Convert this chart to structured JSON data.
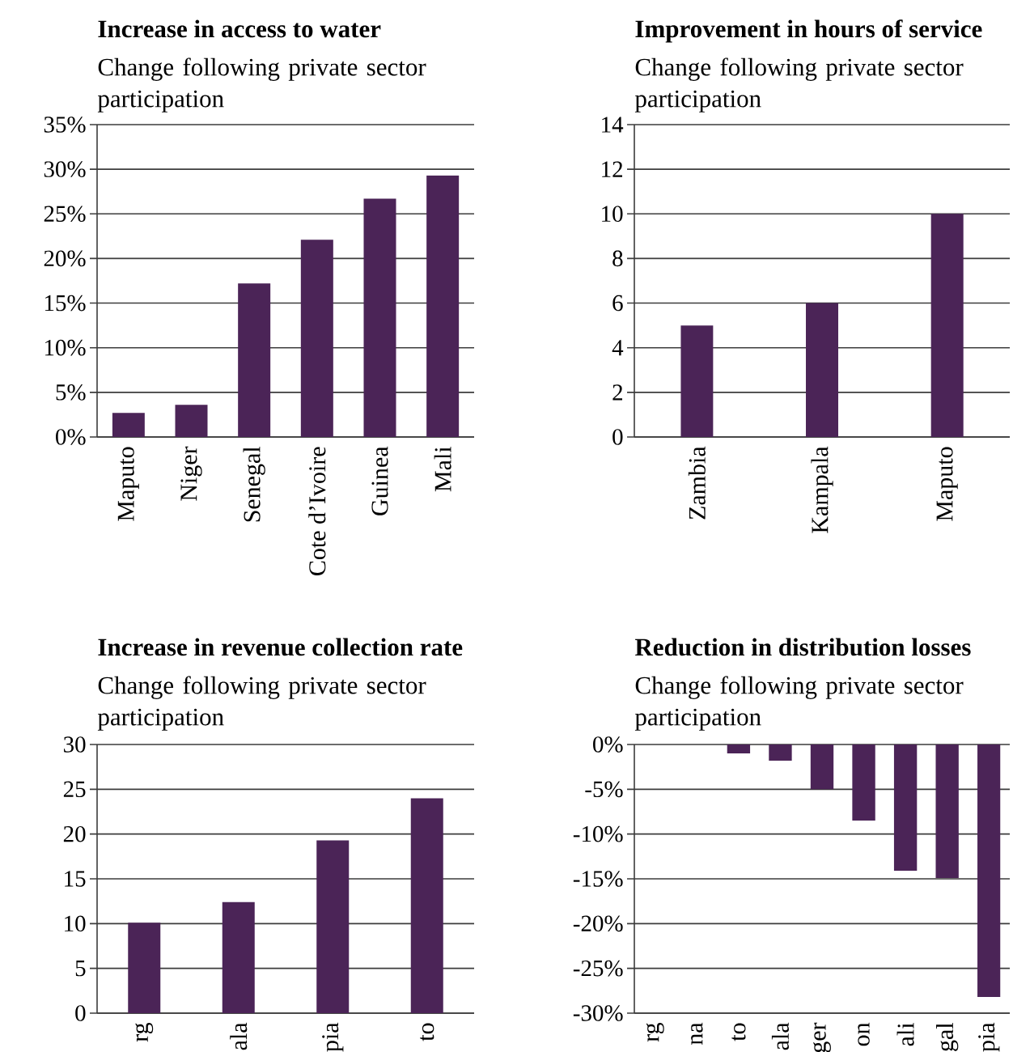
{
  "chart_data": [
    {
      "type": "bar",
      "title": "Increase in access to water",
      "subtitle": "Change following private sector participation",
      "categories": [
        "Maputo",
        "Niger",
        "Senegal",
        "Cote d’Ivoire",
        "Guinea",
        "Mali"
      ],
      "values": [
        2.7,
        3.6,
        17.2,
        22.1,
        26.7,
        29.3
      ],
      "color": "#4b2457",
      "ylim": [
        0,
        35
      ],
      "yticks": [
        {
          "value": 0,
          "label": "0%"
        },
        {
          "value": 5,
          "label": "5%"
        },
        {
          "value": 10,
          "label": "10%"
        },
        {
          "value": 15,
          "label": "15%"
        },
        {
          "value": 20,
          "label": "20%"
        },
        {
          "value": 25,
          "label": "25%"
        },
        {
          "value": 30,
          "label": "30%"
        },
        {
          "value": 35,
          "label": "35%"
        }
      ],
      "grid": "y"
    },
    {
      "type": "bar",
      "title": "Improvement in hours of service",
      "subtitle": "Change following private sector participation",
      "categories": [
        "Zambia",
        "Kampala",
        "Maputo"
      ],
      "values": [
        5,
        6,
        10
      ],
      "color": "#4b2457",
      "ylim": [
        0,
        14
      ],
      "yticks": [
        0,
        2,
        4,
        6,
        8,
        10,
        12,
        14
      ],
      "grid": "y"
    },
    {
      "type": "bar",
      "title": "Increase in revenue collection rate",
      "subtitle": "Change following private sector participation",
      "categories": [
        "rg",
        "ala",
        "pia",
        "to"
      ],
      "values": [
        10.1,
        12.4,
        19.3,
        24.0
      ],
      "color": "#4b2457",
      "ylim": [
        0,
        30
      ],
      "yticks": [
        0,
        5,
        10,
        15,
        20,
        25,
        30
      ],
      "grid": "y"
    },
    {
      "type": "bar",
      "title": "Reduction in distribution losses",
      "subtitle": "Change following private sector participation",
      "categories": [
        "rg",
        "na",
        "to",
        "ala",
        "ger",
        "on",
        "ali",
        "gal",
        "pia"
      ],
      "values": [
        null,
        null,
        -1.0,
        -1.8,
        -5.0,
        -8.5,
        -14.1,
        -14.9,
        -28.2
      ],
      "color": "#4b2457",
      "ylim": [
        -30,
        0
      ],
      "yticks": [
        {
          "value": -30,
          "label": "-30%"
        },
        {
          "value": -25,
          "label": "-25%"
        },
        {
          "value": -20,
          "label": "-20%"
        },
        {
          "value": -15,
          "label": "-15%"
        },
        {
          "value": -10,
          "label": "-10%"
        },
        {
          "value": -5,
          "label": "-5%"
        },
        {
          "value": 0,
          "label": "0%"
        }
      ],
      "grid": "y"
    }
  ]
}
